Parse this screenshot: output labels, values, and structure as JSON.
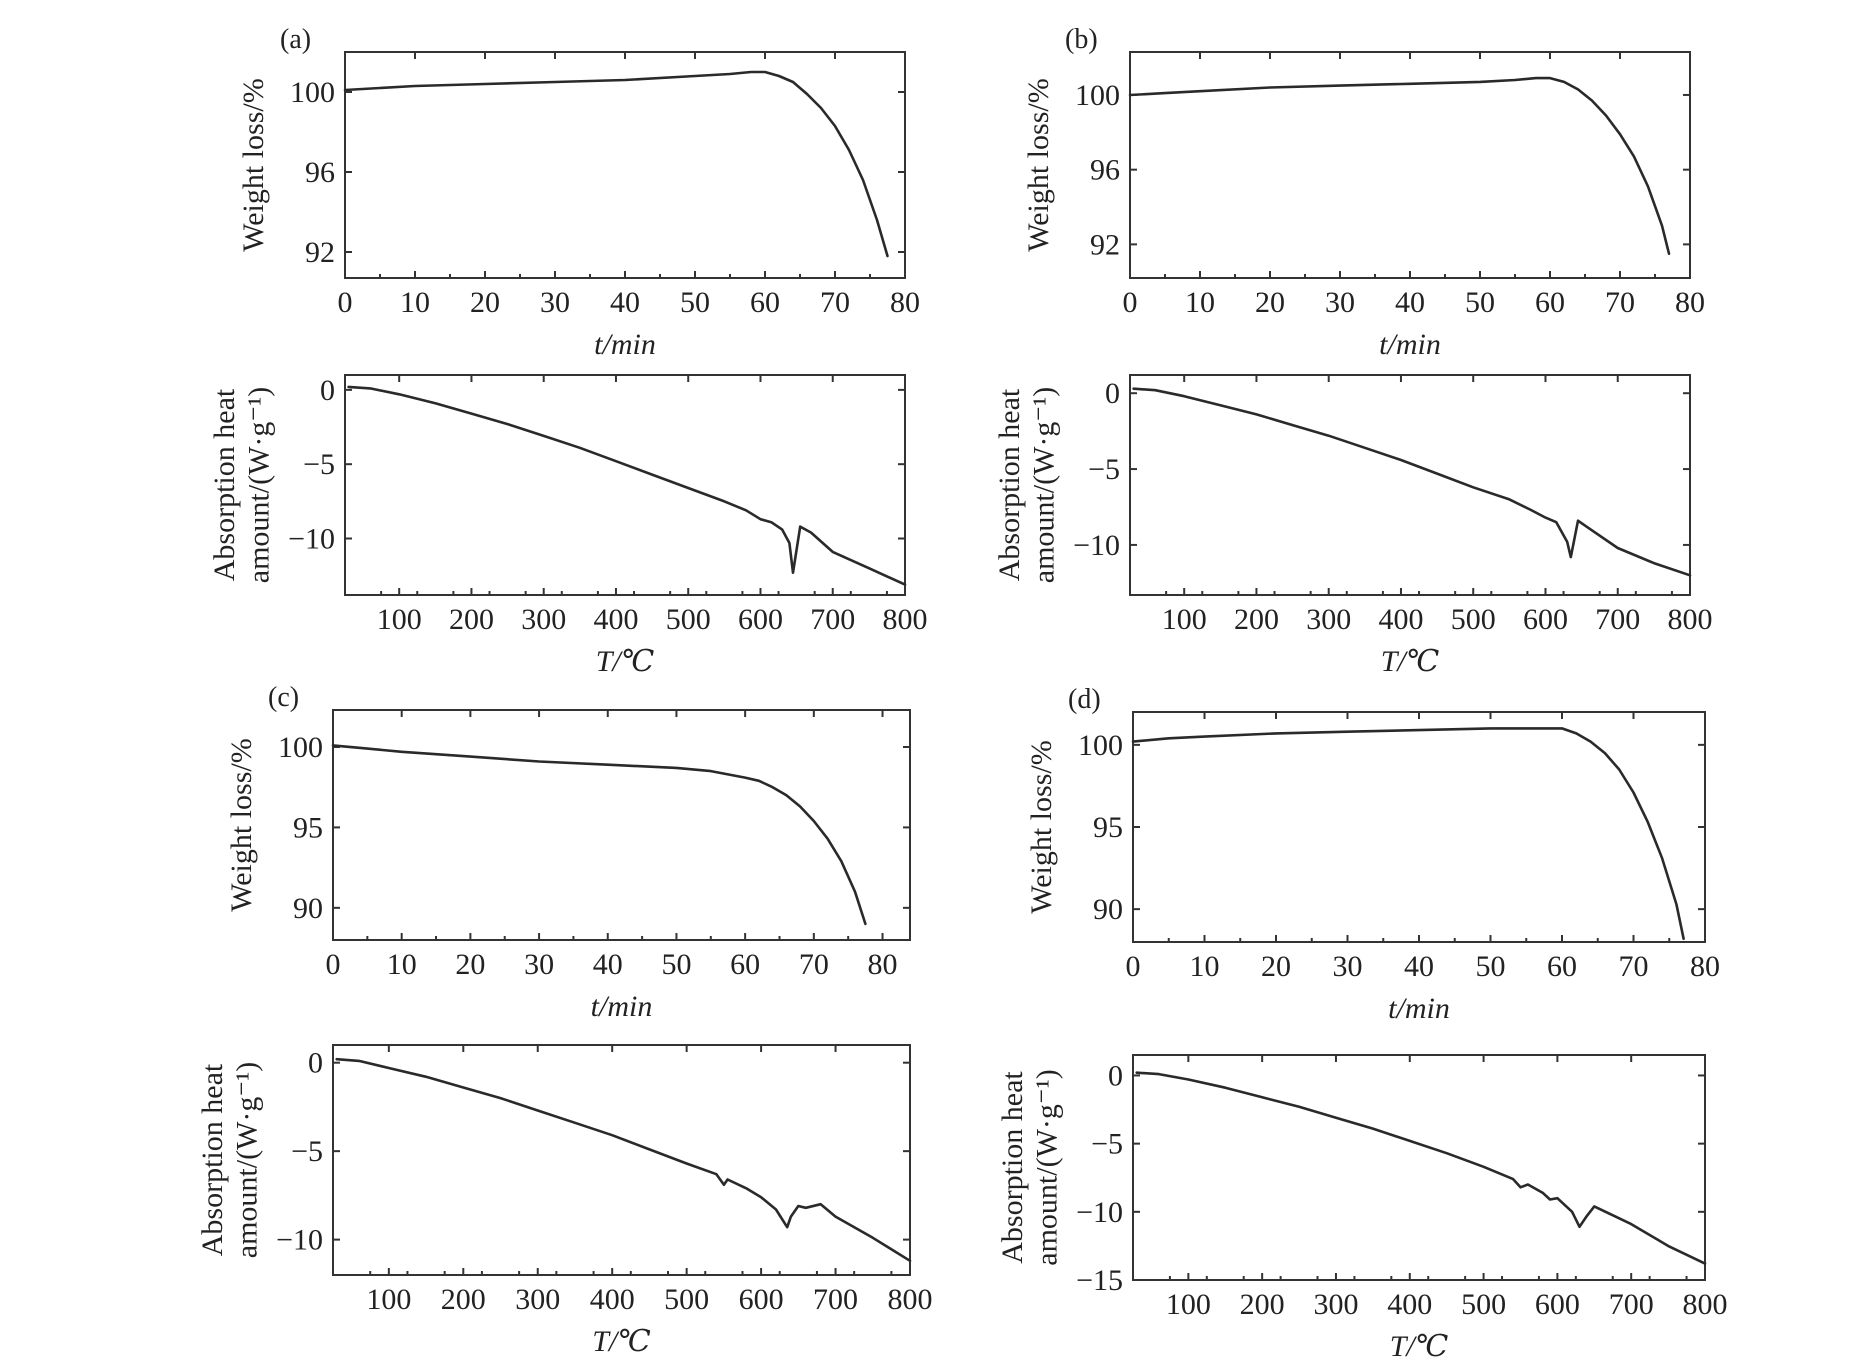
{
  "chart_data": [
    {
      "panel": "(a)",
      "type": "line",
      "xlabel": "t/min",
      "ylabel": "Weight loss/%",
      "xlim": [
        0,
        80
      ],
      "ylim": [
        90.7,
        102
      ],
      "xticks": [
        0,
        10,
        20,
        30,
        40,
        50,
        60,
        70,
        80
      ],
      "xtick_labels": [
        "0",
        "10",
        "20",
        "30",
        "40",
        "50",
        "60",
        "70",
        "80"
      ],
      "yticks": [
        92,
        96,
        100
      ],
      "ytick_labels": [
        "92",
        "96",
        "100"
      ],
      "series": [
        {
          "x": [
            0,
            5,
            10,
            20,
            30,
            40,
            50,
            55,
            58,
            60,
            62,
            64,
            66,
            68,
            70,
            72,
            74,
            76,
            77.5
          ],
          "y": [
            100.1,
            100.2,
            100.3,
            100.4,
            100.5,
            100.6,
            100.8,
            100.9,
            101.0,
            101.0,
            100.8,
            100.5,
            99.9,
            99.2,
            98.3,
            97.1,
            95.6,
            93.6,
            91.8
          ]
        }
      ]
    },
    {
      "panel": "",
      "type": "line",
      "xlabel": "T/℃",
      "ylabel": "Absorption heat amount/(W·g⁻¹)",
      "xlim": [
        25,
        800
      ],
      "ylim": [
        -13.8,
        1
      ],
      "xticks": [
        100,
        200,
        300,
        400,
        500,
        600,
        700,
        800
      ],
      "xtick_labels": [
        "100",
        "200",
        "300",
        "400",
        "500",
        "600",
        "700",
        "800"
      ],
      "yticks": [
        0,
        -5,
        -10
      ],
      "ytick_labels": [
        "0",
        "−5",
        "−10"
      ],
      "series": [
        {
          "x": [
            30,
            60,
            100,
            150,
            200,
            250,
            300,
            350,
            400,
            450,
            500,
            550,
            580,
            600,
            615,
            630,
            640,
            645,
            655,
            670,
            700,
            750,
            800
          ],
          "y": [
            0.2,
            0.1,
            -0.3,
            -0.9,
            -1.6,
            -2.3,
            -3.1,
            -3.9,
            -4.8,
            -5.7,
            -6.6,
            -7.5,
            -8.1,
            -8.7,
            -8.9,
            -9.4,
            -10.3,
            -12.3,
            -9.2,
            -9.6,
            -10.9,
            -12.0,
            -13.1
          ]
        }
      ]
    },
    {
      "panel": "(b)",
      "type": "line",
      "xlabel": "t/min",
      "ylabel": "Weight loss/%",
      "xlim": [
        0,
        80
      ],
      "ylim": [
        90.2,
        102.3
      ],
      "xticks": [
        0,
        10,
        20,
        30,
        40,
        50,
        60,
        70,
        80
      ],
      "xtick_labels": [
        "0",
        "10",
        "20",
        "30",
        "40",
        "50",
        "60",
        "70",
        "80"
      ],
      "yticks": [
        92,
        96,
        100
      ],
      "ytick_labels": [
        "92",
        "96",
        "100"
      ],
      "series": [
        {
          "x": [
            0,
            5,
            10,
            20,
            30,
            40,
            50,
            55,
            58,
            60,
            62,
            64,
            66,
            68,
            70,
            72,
            74,
            76,
            77
          ],
          "y": [
            100.0,
            100.1,
            100.2,
            100.4,
            100.5,
            100.6,
            100.7,
            100.8,
            100.9,
            100.9,
            100.7,
            100.3,
            99.7,
            98.9,
            97.9,
            96.7,
            95.1,
            93.0,
            91.5
          ]
        }
      ]
    },
    {
      "panel": "",
      "type": "line",
      "xlabel": "T/℃",
      "ylabel": "Absorption heat amount/(W·g⁻¹)",
      "xlim": [
        25,
        800
      ],
      "ylim": [
        -13.3,
        1.2
      ],
      "xticks": [
        100,
        200,
        300,
        400,
        500,
        600,
        700,
        800
      ],
      "xtick_labels": [
        "100",
        "200",
        "300",
        "400",
        "500",
        "600",
        "700",
        "800"
      ],
      "yticks": [
        0,
        -5,
        -10
      ],
      "ytick_labels": [
        "0",
        "−5",
        "−10"
      ],
      "series": [
        {
          "x": [
            30,
            60,
            100,
            150,
            200,
            250,
            300,
            350,
            400,
            450,
            500,
            550,
            580,
            600,
            615,
            630,
            635,
            645,
            660,
            700,
            750,
            800
          ],
          "y": [
            0.3,
            0.2,
            -0.2,
            -0.8,
            -1.4,
            -2.1,
            -2.8,
            -3.6,
            -4.4,
            -5.3,
            -6.2,
            -7.0,
            -7.7,
            -8.2,
            -8.5,
            -9.8,
            -10.8,
            -8.4,
            -8.9,
            -10.2,
            -11.2,
            -12.0
          ]
        }
      ]
    },
    {
      "panel": "(c)",
      "type": "line",
      "xlabel": "t/min",
      "ylabel": "Weight loss/%",
      "xlim": [
        0,
        84
      ],
      "ylim": [
        88,
        102.3
      ],
      "xticks": [
        0,
        10,
        20,
        30,
        40,
        50,
        60,
        70,
        80
      ],
      "xtick_labels": [
        "0",
        "10",
        "20",
        "30",
        "40",
        "50",
        "60",
        "70",
        "80"
      ],
      "yticks": [
        90,
        95,
        100
      ],
      "ytick_labels": [
        "90",
        "95",
        "100"
      ],
      "series": [
        {
          "x": [
            0,
            5,
            10,
            20,
            30,
            40,
            50,
            55,
            60,
            62,
            64,
            66,
            68,
            70,
            72,
            74,
            76,
            77.5
          ],
          "y": [
            100.1,
            99.9,
            99.7,
            99.4,
            99.1,
            98.9,
            98.7,
            98.5,
            98.1,
            97.9,
            97.5,
            97.0,
            96.3,
            95.4,
            94.3,
            92.9,
            91.0,
            89.0
          ]
        }
      ]
    },
    {
      "panel": "",
      "type": "line",
      "xlabel": "T/℃",
      "ylabel": "Absorption heat amount/(W·g⁻¹)",
      "xlim": [
        25,
        800
      ],
      "ylim": [
        -12,
        1
      ],
      "xticks": [
        100,
        200,
        300,
        400,
        500,
        600,
        700,
        800
      ],
      "xtick_labels": [
        "100",
        "200",
        "300",
        "400",
        "500",
        "600",
        "700",
        "800"
      ],
      "yticks": [
        0,
        -5,
        -10
      ],
      "ytick_labels": [
        "0",
        "−5",
        "−10"
      ],
      "series": [
        {
          "x": [
            30,
            60,
            100,
            150,
            200,
            250,
            300,
            350,
            400,
            450,
            500,
            540,
            550,
            555,
            580,
            600,
            620,
            635,
            640,
            650,
            660,
            680,
            700,
            750,
            800
          ],
          "y": [
            0.2,
            0.1,
            -0.3,
            -0.8,
            -1.4,
            -2.0,
            -2.7,
            -3.4,
            -4.1,
            -4.9,
            -5.7,
            -6.3,
            -6.9,
            -6.6,
            -7.1,
            -7.6,
            -8.3,
            -9.3,
            -8.7,
            -8.1,
            -8.2,
            -8.0,
            -8.7,
            -9.9,
            -11.2
          ]
        }
      ]
    },
    {
      "panel": "(d)",
      "type": "line",
      "xlabel": "t/min",
      "ylabel": "Weight loss/%",
      "xlim": [
        0,
        80
      ],
      "ylim": [
        88,
        102
      ],
      "xticks": [
        0,
        10,
        20,
        30,
        40,
        50,
        60,
        70,
        80
      ],
      "xtick_labels": [
        "0",
        "10",
        "20",
        "30",
        "40",
        "50",
        "60",
        "70",
        "80"
      ],
      "yticks": [
        90,
        95,
        100
      ],
      "ytick_labels": [
        "90",
        "95",
        "100"
      ],
      "series": [
        {
          "x": [
            0,
            5,
            10,
            20,
            30,
            40,
            50,
            55,
            58,
            60,
            62,
            64,
            66,
            68,
            70,
            72,
            74,
            76,
            77
          ],
          "y": [
            100.2,
            100.4,
            100.5,
            100.7,
            100.8,
            100.9,
            101.0,
            101.0,
            101.0,
            101.0,
            100.7,
            100.2,
            99.5,
            98.5,
            97.1,
            95.3,
            93.1,
            90.3,
            88.2
          ]
        }
      ]
    },
    {
      "panel": "",
      "type": "line",
      "xlabel": "T/℃",
      "ylabel": "Absorption heat amount/(W·g⁻¹)",
      "xlim": [
        25,
        800
      ],
      "ylim": [
        -15,
        1.5
      ],
      "xticks": [
        100,
        200,
        300,
        400,
        500,
        600,
        700,
        800
      ],
      "xtick_labels": [
        "100",
        "200",
        "300",
        "400",
        "500",
        "600",
        "700",
        "800"
      ],
      "yticks": [
        0,
        -5,
        -10,
        -15
      ],
      "ytick_labels": [
        "0",
        "−5",
        "−10",
        "−15"
      ],
      "series": [
        {
          "x": [
            30,
            60,
            100,
            150,
            200,
            250,
            300,
            350,
            400,
            450,
            500,
            540,
            550,
            560,
            580,
            590,
            600,
            620,
            630,
            640,
            650,
            700,
            750,
            800
          ],
          "y": [
            0.2,
            0.1,
            -0.3,
            -0.9,
            -1.6,
            -2.3,
            -3.1,
            -3.9,
            -4.8,
            -5.7,
            -6.7,
            -7.6,
            -8.2,
            -8.0,
            -8.6,
            -9.1,
            -9.0,
            -10.0,
            -11.1,
            -10.3,
            -9.6,
            -10.9,
            -12.5,
            -13.8
          ]
        }
      ]
    }
  ]
}
